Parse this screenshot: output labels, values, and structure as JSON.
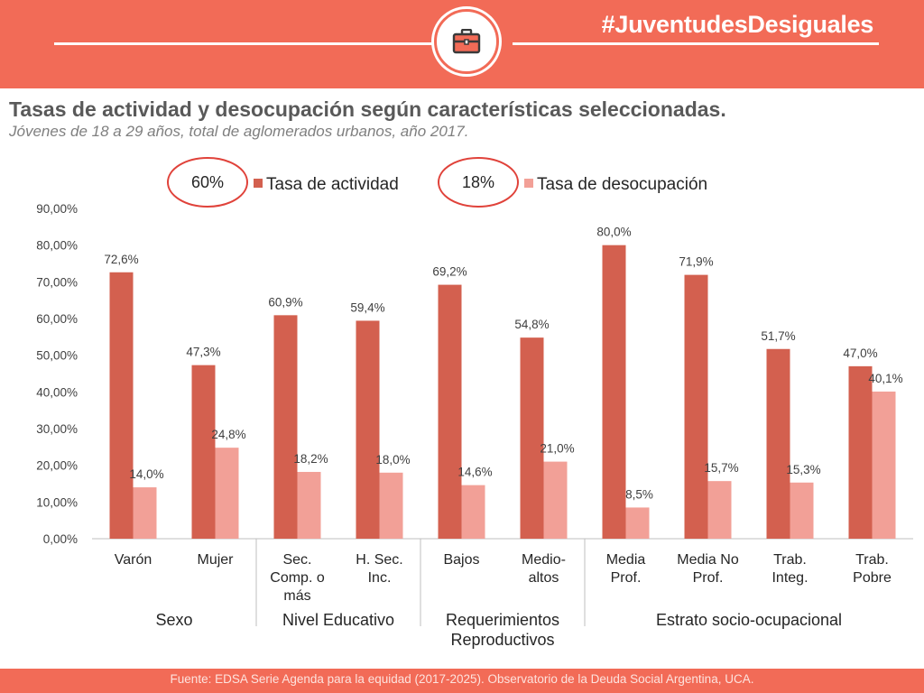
{
  "header": {
    "hashtag": "#JuventudesDesiguales",
    "icon": "briefcase-icon"
  },
  "title": "Tasas de actividad y desocupación según características seleccionadas.",
  "subtitle": "Jóvenes de 18 a 29 años, total de aglomerados urbanos, año 2017.",
  "footer": {
    "source": "Fuente: EDSA Serie Agenda para la equidad (2017-2025). Observatorio de la Deuda Social Argentina, UCA."
  },
  "colors": {
    "brand": "#f26b57",
    "actividad": "#d3604f",
    "desocupacion": "#f2a097"
  },
  "chart_data": {
    "type": "bar",
    "ylim": [
      0,
      90
    ],
    "yticks": [
      "0,00%",
      "10,00%",
      "20,00%",
      "30,00%",
      "40,00%",
      "50,00%",
      "60,00%",
      "70,00%",
      "80,00%",
      "90,00%"
    ],
    "grid": false,
    "legend_position": "top",
    "legend": [
      {
        "badge": "60%",
        "name": "Tasa de actividad"
      },
      {
        "badge": "18%",
        "name": "Tasa de desocupación"
      }
    ],
    "categories": [
      [
        "Varón"
      ],
      [
        "Mujer"
      ],
      [
        "Sec.",
        "Comp. o",
        "más"
      ],
      [
        "H. Sec.",
        "Inc."
      ],
      [
        "Bajos"
      ],
      [
        "Medio-",
        "altos"
      ],
      [
        "Media",
        "Prof."
      ],
      [
        "Media No",
        "Prof."
      ],
      [
        "Trab.",
        "Integ."
      ],
      [
        "Trab.",
        "Pobre"
      ]
    ],
    "groups": [
      {
        "label": [
          "Sexo"
        ],
        "from": 0,
        "to": 1
      },
      {
        "label": [
          "Nivel Educativo"
        ],
        "from": 2,
        "to": 3
      },
      {
        "label": [
          "Requerimientos",
          "Reproductivos"
        ],
        "from": 4,
        "to": 5
      },
      {
        "label": [
          "Estrato socio-ocupacional"
        ],
        "from": 6,
        "to": 9
      }
    ],
    "series": [
      {
        "name": "Tasa de actividad",
        "values": [
          72.6,
          47.3,
          60.9,
          59.4,
          69.2,
          54.8,
          80.0,
          71.9,
          51.7,
          47.0
        ],
        "labels": [
          "72,6%",
          "47,3%",
          "60,9%",
          "59,4%",
          "69,2%",
          "54,8%",
          "80,0%",
          "71,9%",
          "51,7%",
          "47,0%"
        ]
      },
      {
        "name": "Tasa de desocupación",
        "values": [
          14.0,
          24.8,
          18.2,
          18.0,
          14.6,
          21.0,
          8.5,
          15.7,
          15.3,
          40.1
        ],
        "labels": [
          "14,0%",
          "24,8%",
          "18,2%",
          "18,0%",
          "14,6%",
          "21,0%",
          "8,5%",
          "15,7%",
          "15,3%",
          "40,1%"
        ]
      }
    ]
  }
}
